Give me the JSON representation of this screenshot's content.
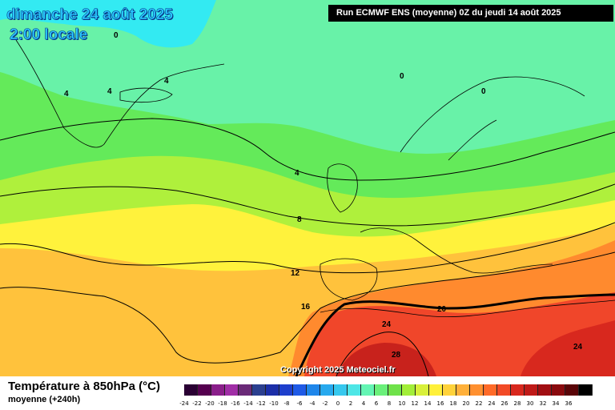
{
  "header": {
    "date": "dimanche 24 août 2025",
    "time": "2:00 locale",
    "run": "Run ECMWF ENS (moyenne) 0Z du jeudi 14 août 2025"
  },
  "copyright": "Copyright 2025 Meteociel.fr",
  "legend": {
    "title": "Température à 850hPa (°C)",
    "subtitle": "moyenne   (+240h)",
    "ticks": [
      "-24",
      "-22",
      "-20",
      "-18",
      "-16",
      "-14",
      "-12",
      "-10",
      "-8",
      "-6",
      "-4",
      "-2",
      "0",
      "2",
      "4",
      "6",
      "8",
      "10",
      "12",
      "14",
      "16",
      "18",
      "20",
      "22",
      "24",
      "26",
      "28",
      "30",
      "32",
      "34",
      "36"
    ],
    "colors": [
      "#2a0033",
      "#55004f",
      "#8a1f8a",
      "#a02ea6",
      "#6a2a78",
      "#2b3f8f",
      "#1c2fa8",
      "#1e3fcc",
      "#1f5ae6",
      "#1f86ea",
      "#27a9ee",
      "#36c8ee",
      "#4ee6e6",
      "#64f5b4",
      "#6af07a",
      "#6fe24a",
      "#a2ee38",
      "#d8f03a",
      "#fff03a",
      "#ffd23a",
      "#ffb03a",
      "#ff9030",
      "#ff6a28",
      "#f24a26",
      "#d8281e",
      "#bf1a18",
      "#a10e12",
      "#8a0a0e",
      "#5a0508",
      "#000000"
    ]
  },
  "map": {
    "contour_labels": [
      "0",
      "0",
      "0",
      "4",
      "4",
      "4",
      "4",
      "8",
      "12",
      "16",
      "20",
      "24",
      "24",
      "28"
    ],
    "colors": {
      "ocean_cold": "#68f2a8",
      "band_4_8": "#64ea5a",
      "band_8_12": "#aff03c",
      "band_12_16": "#fff23c",
      "band_16_20": "#ffc23c",
      "band_20_24": "#ff8a2e",
      "band_24_28": "#f0462a",
      "band_28": "#c8221c",
      "greenland": "#33eaf2"
    }
  }
}
